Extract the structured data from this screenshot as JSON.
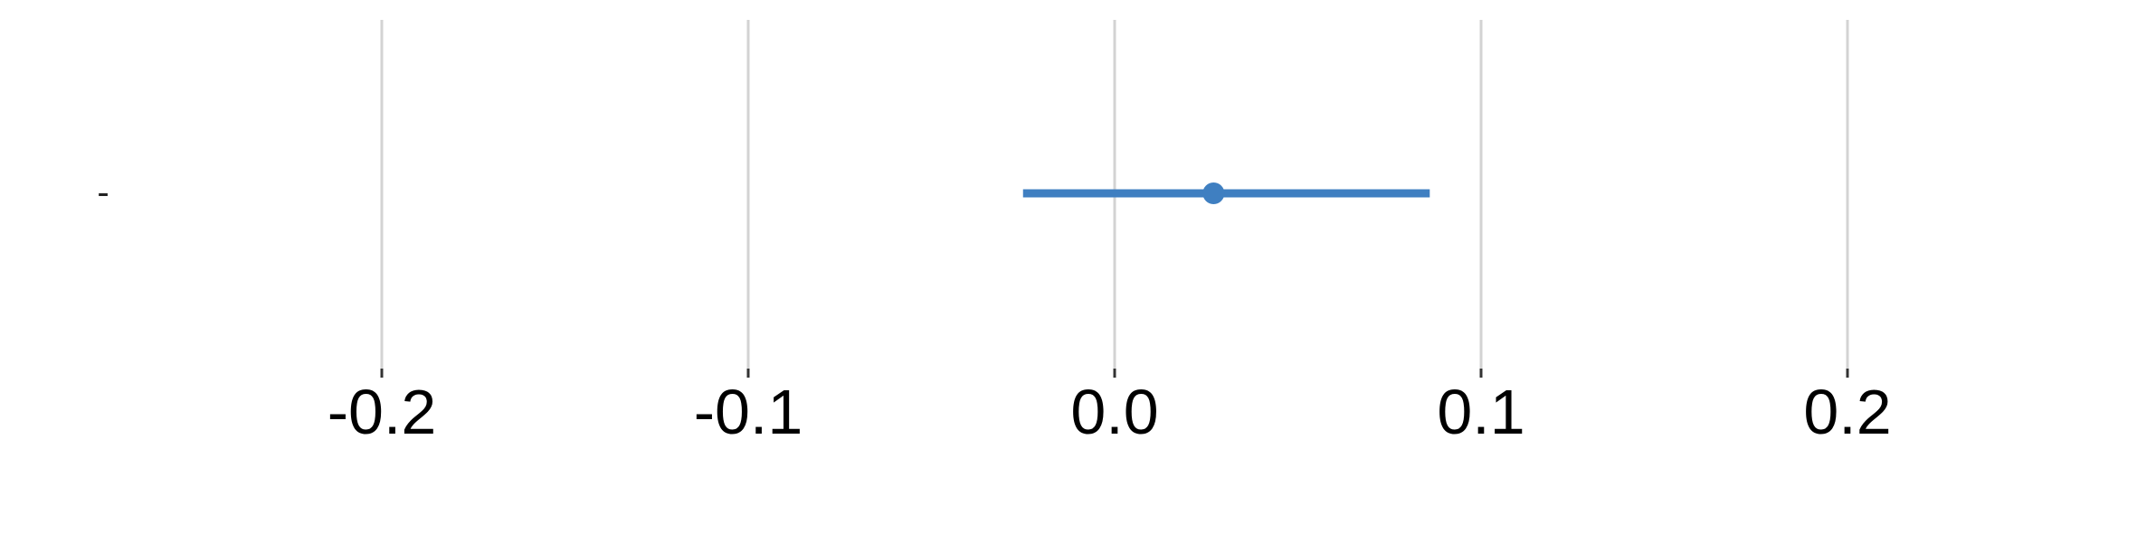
{
  "chart_data": {
    "type": "scatter",
    "subtype": "forest-plot",
    "title": "",
    "xlabel": "",
    "ylabel": "",
    "xlim": [
      -0.26,
      0.29
    ],
    "x_ticks": [
      -0.2,
      -0.1,
      0.0,
      0.1,
      0.2
    ],
    "x_tick_labels": [
      "-0.2",
      "-0.1",
      "0.0",
      "0.1",
      "0.2"
    ],
    "grid": true,
    "legend": "none",
    "rows": [
      {
        "label": "-",
        "estimate": 0.027,
        "ci_low": -0.025,
        "ci_high": 0.086
      }
    ],
    "colors": {
      "point": "#3f7fc1",
      "gridline": "#d3d3d3",
      "tick": "#333333"
    }
  }
}
